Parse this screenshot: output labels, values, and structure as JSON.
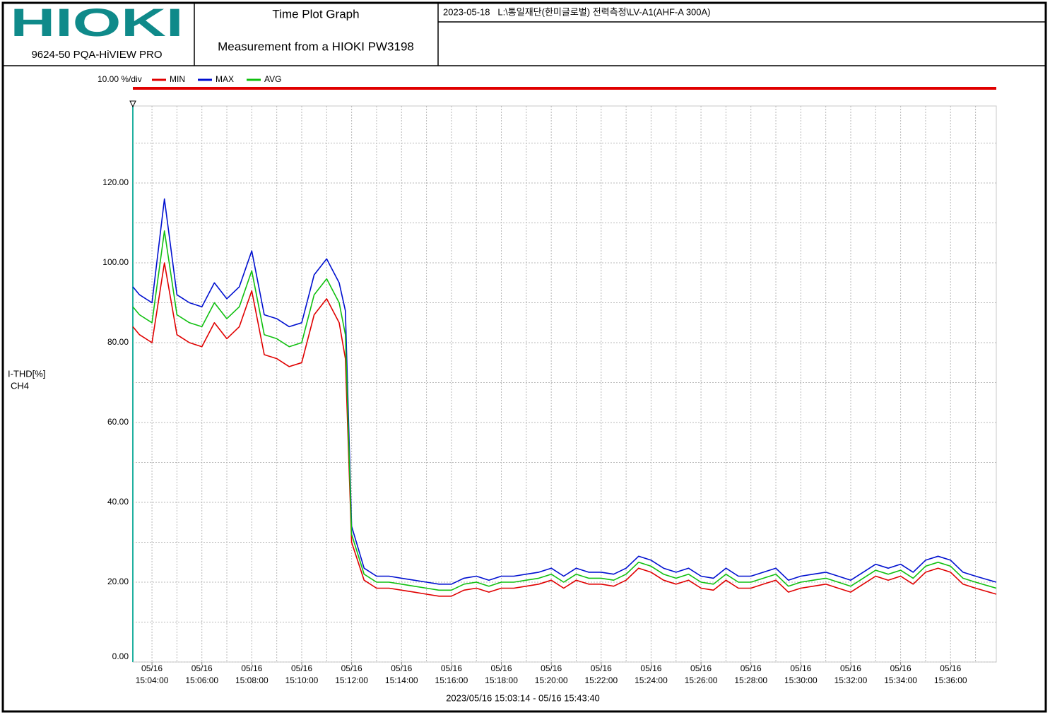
{
  "header": {
    "logo": "HIOKI",
    "product": "9624-50 PQA-HiVIEW PRO",
    "title": "Time Plot Graph",
    "subtitle": "Measurement from a HIOKI PW3198",
    "file_info": "2023-05-18   L:\\통일재단(한미글로벌) 전력측정\\LV-A1(AHF-A 300A)"
  },
  "chart_data": {
    "type": "line",
    "scale_label": "10.00 %/div",
    "ylabel": "I-THD[%]",
    "channel": "CH4",
    "xlabel": "2023/05/16 15:03:14 - 05/16 15:43:40",
    "ylim": [
      0,
      139.3
    ],
    "yticks": [
      {
        "value": 0,
        "label": "0.00"
      },
      {
        "value": 20,
        "label": "20.00"
      },
      {
        "value": 40,
        "label": "40.00"
      },
      {
        "value": 60,
        "label": "60.00"
      },
      {
        "value": 80,
        "label": "80.00"
      },
      {
        "value": 100,
        "label": "100.00"
      },
      {
        "value": 120,
        "label": "120.00"
      }
    ],
    "y_minor_ticks": [
      10,
      30,
      50,
      70,
      90,
      110,
      130
    ],
    "xlim": [
      "15:03:14",
      "15:37:50"
    ],
    "xticks": [
      {
        "value": "15:04:00",
        "label": [
          "05/16",
          "15:04:00"
        ]
      },
      {
        "value": "15:06:00",
        "label": [
          "05/16",
          "15:06:00"
        ]
      },
      {
        "value": "15:08:00",
        "label": [
          "05/16",
          "15:08:00"
        ]
      },
      {
        "value": "15:10:00",
        "label": [
          "05/16",
          "15:10:00"
        ]
      },
      {
        "value": "15:12:00",
        "label": [
          "05/16",
          "15:12:00"
        ]
      },
      {
        "value": "15:14:00",
        "label": [
          "05/16",
          "15:14:00"
        ]
      },
      {
        "value": "15:16:00",
        "label": [
          "05/16",
          "15:16:00"
        ]
      },
      {
        "value": "15:18:00",
        "label": [
          "05/16",
          "15:18:00"
        ]
      },
      {
        "value": "15:20:00",
        "label": [
          "05/16",
          "15:20:00"
        ]
      },
      {
        "value": "15:22:00",
        "label": [
          "05/16",
          "15:22:00"
        ]
      },
      {
        "value": "15:24:00",
        "label": [
          "05/16",
          "15:24:00"
        ]
      },
      {
        "value": "15:26:00",
        "label": [
          "05/16",
          "15:26:00"
        ]
      },
      {
        "value": "15:28:00",
        "label": [
          "05/16",
          "15:28:00"
        ]
      },
      {
        "value": "15:30:00",
        "label": [
          "05/16",
          "15:30:00"
        ]
      },
      {
        "value": "15:32:00",
        "label": [
          "05/16",
          "15:32:00"
        ]
      },
      {
        "value": "15:34:00",
        "label": [
          "05/16",
          "15:34:00"
        ]
      },
      {
        "value": "15:36:00",
        "label": [
          "05/16",
          "15:36:00"
        ]
      }
    ],
    "x_minor_ticks": [
      "15:05:00",
      "15:07:00",
      "15:09:00",
      "15:11:00",
      "15:13:00",
      "15:15:00",
      "15:17:00",
      "15:19:00",
      "15:21:00",
      "15:23:00",
      "15:25:00",
      "15:27:00",
      "15:29:00",
      "15:31:00",
      "15:33:00",
      "15:35:00",
      "15:37:00"
    ],
    "grid": true,
    "x": [
      "15:03:14",
      "15:03:30",
      "15:04:00",
      "15:04:30",
      "15:05:00",
      "15:05:30",
      "15:06:00",
      "15:06:30",
      "15:07:00",
      "15:07:30",
      "15:08:00",
      "15:08:30",
      "15:09:00",
      "15:09:30",
      "15:10:00",
      "15:10:30",
      "15:11:00",
      "15:11:30",
      "15:11:45",
      "15:12:00",
      "15:12:30",
      "15:13:00",
      "15:13:30",
      "15:14:00",
      "15:14:30",
      "15:15:00",
      "15:15:30",
      "15:16:00",
      "15:16:30",
      "15:17:00",
      "15:17:30",
      "15:18:00",
      "15:18:30",
      "15:19:00",
      "15:19:30",
      "15:20:00",
      "15:20:30",
      "15:21:00",
      "15:21:30",
      "15:22:00",
      "15:22:30",
      "15:23:00",
      "15:23:30",
      "15:24:00",
      "15:24:30",
      "15:25:00",
      "15:25:30",
      "15:26:00",
      "15:26:30",
      "15:27:00",
      "15:27:30",
      "15:28:00",
      "15:28:30",
      "15:29:00",
      "15:29:30",
      "15:30:00",
      "15:30:30",
      "15:31:00",
      "15:31:30",
      "15:32:00",
      "15:32:30",
      "15:33:00",
      "15:33:30",
      "15:34:00",
      "15:34:30",
      "15:35:00",
      "15:35:30",
      "15:36:00",
      "15:36:30",
      "15:37:00",
      "15:37:50"
    ],
    "series": [
      {
        "name": "MIN",
        "color": "#e00000",
        "values": [
          84,
          82,
          80,
          100,
          82,
          80,
          79,
          85,
          81,
          84,
          93,
          77,
          76,
          74,
          75,
          87,
          91,
          85,
          76,
          30,
          20.5,
          18.5,
          18.5,
          18,
          17.5,
          17,
          16.5,
          16.5,
          18,
          18.5,
          17.5,
          18.5,
          18.5,
          19,
          19.5,
          20.5,
          18.5,
          20.5,
          19.5,
          19.5,
          19,
          20.5,
          23.5,
          22.5,
          20.5,
          19.5,
          20.5,
          18.5,
          18,
          20.5,
          18.5,
          18.5,
          19.5,
          20.5,
          17.5,
          18.5,
          19,
          19.5,
          18.5,
          17.5,
          19.5,
          21.5,
          20.5,
          21.5,
          19.5,
          22.5,
          23.5,
          22.5,
          19.5,
          18.5,
          17
        ]
      },
      {
        "name": "MAX",
        "color": "#0010d0",
        "values": [
          94,
          92,
          90,
          116,
          92,
          90,
          89,
          95,
          91,
          94,
          103,
          87,
          86,
          84,
          85,
          97,
          101,
          95,
          88,
          34,
          23.5,
          21.5,
          21.5,
          21,
          20.5,
          20,
          19.5,
          19.5,
          21,
          21.5,
          20.5,
          21.5,
          21.5,
          22,
          22.5,
          23.5,
          21.5,
          23.5,
          22.5,
          22.5,
          22,
          23.5,
          26.5,
          25.5,
          23.5,
          22.5,
          23.5,
          21.5,
          21,
          23.5,
          21.5,
          21.5,
          22.5,
          23.5,
          20.5,
          21.5,
          22,
          22.5,
          21.5,
          20.5,
          22.5,
          24.5,
          23.5,
          24.5,
          22.5,
          25.5,
          26.5,
          25.5,
          22.5,
          21.5,
          20
        ]
      },
      {
        "name": "AVG",
        "color": "#10c010",
        "values": [
          89,
          87,
          85,
          108,
          87,
          85,
          84,
          90,
          86,
          89,
          98,
          82,
          81,
          79,
          80,
          92,
          96,
          90,
          82,
          32,
          22,
          20,
          20,
          19.5,
          19,
          18.5,
          18,
          18,
          19.5,
          20,
          19,
          20,
          20,
          20.5,
          21,
          22,
          20,
          22,
          21,
          21,
          20.5,
          22,
          25,
          24,
          22,
          21,
          22,
          20,
          19.5,
          22,
          20,
          20,
          21,
          22,
          19,
          20,
          20.5,
          21,
          20,
          19,
          21,
          23,
          22,
          23,
          21,
          24,
          25,
          24,
          21,
          20,
          18.5
        ]
      }
    ]
  }
}
